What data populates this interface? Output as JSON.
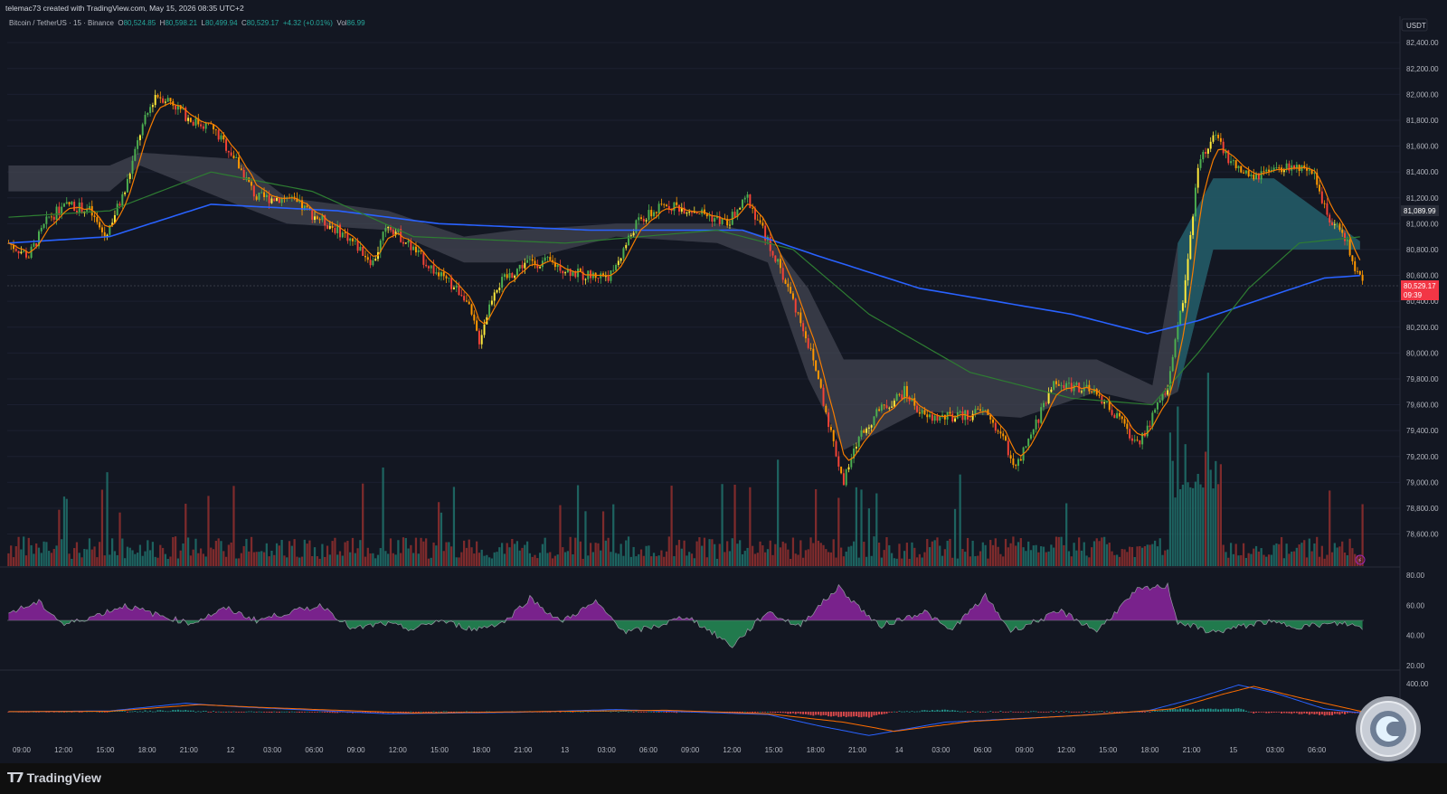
{
  "header": {
    "credit": "telemac73 created with TradingView.com, May 15, 2026 08:35 UTC+2"
  },
  "legend": {
    "symbol": "Bitcoin / TetherUS · 15 · Binance",
    "o_label": "O",
    "o": "80,524.85",
    "h_label": "H",
    "h": "80,598.21",
    "l_label": "L",
    "l": "80,499.94",
    "c_label": "C",
    "c": "80,529.17",
    "change": "+4.32 (+0.01%)",
    "vol_label": "Vol",
    "vol": "86.99"
  },
  "price_axis": {
    "currency": "USDT",
    "ticks": [
      "82,400.00",
      "82,200.00",
      "82,000.00",
      "81,800.00",
      "81,600.00",
      "81,400.00",
      "81,200.00",
      "81,000.00",
      "80,800.00",
      "80,600.00",
      "80,400.00",
      "80,200.00",
      "80,000.00",
      "79,800.00",
      "79,600.00",
      "79,400.00",
      "79,200.00",
      "79,000.00",
      "78,800.00",
      "78,600.00"
    ],
    "marker_ema": "81,089.99",
    "marker_price": "80,529.17",
    "marker_countdown": "09:39"
  },
  "rsi_axis": {
    "ticks": [
      "80.00",
      "60.00",
      "40.00",
      "20.00"
    ]
  },
  "macd_axis": {
    "ticks": [
      "400.00"
    ]
  },
  "time_axis": {
    "labels": [
      "09:00",
      "12:00",
      "15:00",
      "18:00",
      "21:00",
      "12",
      "03:00",
      "06:00",
      "09:00",
      "12:00",
      "15:00",
      "18:00",
      "21:00",
      "13",
      "03:00",
      "06:00",
      "09:00",
      "12:00",
      "15:00",
      "18:00",
      "21:00",
      "14",
      "03:00",
      "06:00",
      "09:00",
      "12:00",
      "15:00",
      "18:00",
      "21:00",
      "15",
      "03:00",
      "06:00"
    ]
  },
  "brand": {
    "name": "TradingView"
  },
  "colors": {
    "up": "#26a69a",
    "down": "#ef5350",
    "bg": "#131722",
    "ema_short": "#f57c00",
    "ema_mid": "#2e7d32",
    "ema_long": "#2962ff",
    "rsi_up": "#9c27b0",
    "rsi_down": "#2ecc71"
  },
  "chart_data": {
    "type": "candlestick",
    "symbol": "BTCUSDT",
    "interval": "15",
    "ylim": [
      78450,
      82450
    ],
    "close_path": [
      [
        0,
        80850
      ],
      [
        8,
        80750
      ],
      [
        16,
        81050
      ],
      [
        24,
        81150
      ],
      [
        32,
        81100
      ],
      [
        38,
        80900
      ],
      [
        46,
        81250
      ],
      [
        52,
        81700
      ],
      [
        58,
        82000
      ],
      [
        64,
        81950
      ],
      [
        72,
        81800
      ],
      [
        80,
        81750
      ],
      [
        88,
        81550
      ],
      [
        98,
        81200
      ],
      [
        110,
        81200
      ],
      [
        122,
        81050
      ],
      [
        134,
        80900
      ],
      [
        144,
        80700
      ],
      [
        150,
        81000
      ],
      [
        160,
        80800
      ],
      [
        170,
        80600
      ],
      [
        180,
        80450
      ],
      [
        186,
        80100
      ],
      [
        192,
        80500
      ],
      [
        204,
        80700
      ],
      [
        214,
        80700
      ],
      [
        226,
        80600
      ],
      [
        238,
        80600
      ],
      [
        248,
        81000
      ],
      [
        260,
        81150
      ],
      [
        272,
        81100
      ],
      [
        284,
        81000
      ],
      [
        292,
        81200
      ],
      [
        298,
        80950
      ],
      [
        306,
        80600
      ],
      [
        314,
        80200
      ],
      [
        320,
        79800
      ],
      [
        326,
        79300
      ],
      [
        330,
        79000
      ],
      [
        336,
        79350
      ],
      [
        344,
        79550
      ],
      [
        354,
        79700
      ],
      [
        362,
        79500
      ],
      [
        374,
        79500
      ],
      [
        386,
        79550
      ],
      [
        394,
        79300
      ],
      [
        398,
        79100
      ],
      [
        404,
        79350
      ],
      [
        412,
        79750
      ],
      [
        422,
        79750
      ],
      [
        432,
        79650
      ],
      [
        440,
        79450
      ],
      [
        446,
        79300
      ],
      [
        452,
        79500
      ],
      [
        458,
        79750
      ],
      [
        464,
        80400
      ],
      [
        470,
        81450
      ],
      [
        476,
        81700
      ],
      [
        482,
        81500
      ],
      [
        490,
        81350
      ],
      [
        500,
        81400
      ],
      [
        508,
        81450
      ],
      [
        516,
        81350
      ],
      [
        522,
        81050
      ],
      [
        528,
        80900
      ],
      [
        532,
        80650
      ],
      [
        535,
        80530
      ]
    ],
    "ema_short_period_note": "",
    "series_ema_mid": [
      [
        0,
        81050
      ],
      [
        40,
        81100
      ],
      [
        80,
        81400
      ],
      [
        120,
        81250
      ],
      [
        160,
        80900
      ],
      [
        220,
        80850
      ],
      [
        280,
        80950
      ],
      [
        310,
        80800
      ],
      [
        340,
        80300
      ],
      [
        380,
        79850
      ],
      [
        420,
        79650
      ],
      [
        452,
        79600
      ],
      [
        470,
        80000
      ],
      [
        490,
        80500
      ],
      [
        510,
        80850
      ],
      [
        535,
        80900
      ]
    ],
    "series_ema_long": [
      [
        0,
        80850
      ],
      [
        40,
        80900
      ],
      [
        80,
        81150
      ],
      [
        130,
        81100
      ],
      [
        170,
        81000
      ],
      [
        230,
        80950
      ],
      [
        290,
        80950
      ],
      [
        320,
        80750
      ],
      [
        360,
        80500
      ],
      [
        420,
        80300
      ],
      [
        450,
        80150
      ],
      [
        470,
        80250
      ],
      [
        500,
        80450
      ],
      [
        520,
        80580
      ],
      [
        535,
        80600
      ]
    ],
    "cloud": [
      [
        0,
        81450,
        81250
      ],
      [
        40,
        81450,
        81250
      ],
      [
        52,
        81550,
        81450
      ],
      [
        90,
        81500,
        81150
      ],
      [
        110,
        81200,
        81000
      ],
      [
        150,
        81100,
        80950
      ],
      [
        180,
        80900,
        80700
      ],
      [
        200,
        80950,
        80700
      ],
      [
        240,
        81000,
        80900
      ],
      [
        280,
        81000,
        80850
      ],
      [
        300,
        80900,
        80700
      ],
      [
        316,
        80500,
        79800
      ],
      [
        330,
        79950,
        79250
      ],
      [
        360,
        79950,
        79550
      ],
      [
        400,
        79950,
        79500
      ],
      [
        430,
        79950,
        79700
      ],
      [
        452,
        79750,
        79600
      ],
      [
        462,
        80850,
        79700
      ],
      [
        476,
        81350,
        80800
      ],
      [
        500,
        81350,
        80800
      ],
      [
        535,
        80850,
        80800
      ]
    ],
    "rsi_ylim": [
      20,
      80
    ],
    "rsi_midline": 50,
    "rsi_path": [
      [
        0,
        55
      ],
      [
        12,
        62
      ],
      [
        22,
        47
      ],
      [
        34,
        53
      ],
      [
        46,
        60
      ],
      [
        58,
        54
      ],
      [
        72,
        48
      ],
      [
        86,
        58
      ],
      [
        98,
        50
      ],
      [
        110,
        55
      ],
      [
        124,
        60
      ],
      [
        136,
        44
      ],
      [
        148,
        48
      ],
      [
        160,
        44
      ],
      [
        170,
        50
      ],
      [
        184,
        44
      ],
      [
        196,
        49
      ],
      [
        206,
        65
      ],
      [
        218,
        49
      ],
      [
        232,
        62
      ],
      [
        244,
        42
      ],
      [
        256,
        46
      ],
      [
        268,
        53
      ],
      [
        286,
        33
      ],
      [
        300,
        56
      ],
      [
        312,
        46
      ],
      [
        328,
        72
      ],
      [
        344,
        46
      ],
      [
        362,
        56
      ],
      [
        372,
        43
      ],
      [
        386,
        66
      ],
      [
        396,
        43
      ],
      [
        416,
        56
      ],
      [
        430,
        43
      ],
      [
        446,
        70
      ],
      [
        458,
        73
      ],
      [
        462,
        49
      ],
      [
        476,
        42
      ],
      [
        496,
        49
      ],
      [
        510,
        46
      ],
      [
        528,
        48
      ],
      [
        535,
        45
      ]
    ],
    "macd_ylim": [
      -400,
      450
    ],
    "macd_path": [
      [
        0,
        0
      ],
      [
        40,
        10
      ],
      [
        70,
        120
      ],
      [
        90,
        70
      ],
      [
        150,
        -30
      ],
      [
        200,
        -10
      ],
      [
        240,
        30
      ],
      [
        300,
        -40
      ],
      [
        320,
        -200
      ],
      [
        340,
        -340
      ],
      [
        370,
        -150
      ],
      [
        420,
        -60
      ],
      [
        450,
        10
      ],
      [
        470,
        200
      ],
      [
        486,
        380
      ],
      [
        500,
        270
      ],
      [
        520,
        40
      ],
      [
        535,
        -20
      ]
    ],
    "signal_path": [
      [
        0,
        0
      ],
      [
        40,
        5
      ],
      [
        75,
        100
      ],
      [
        100,
        60
      ],
      [
        160,
        -20
      ],
      [
        220,
        5
      ],
      [
        260,
        20
      ],
      [
        300,
        -30
      ],
      [
        330,
        -150
      ],
      [
        350,
        -280
      ],
      [
        380,
        -140
      ],
      [
        430,
        -40
      ],
      [
        460,
        40
      ],
      [
        480,
        250
      ],
      [
        492,
        360
      ],
      [
        510,
        200
      ],
      [
        535,
        0
      ]
    ],
    "notes": ""
  }
}
